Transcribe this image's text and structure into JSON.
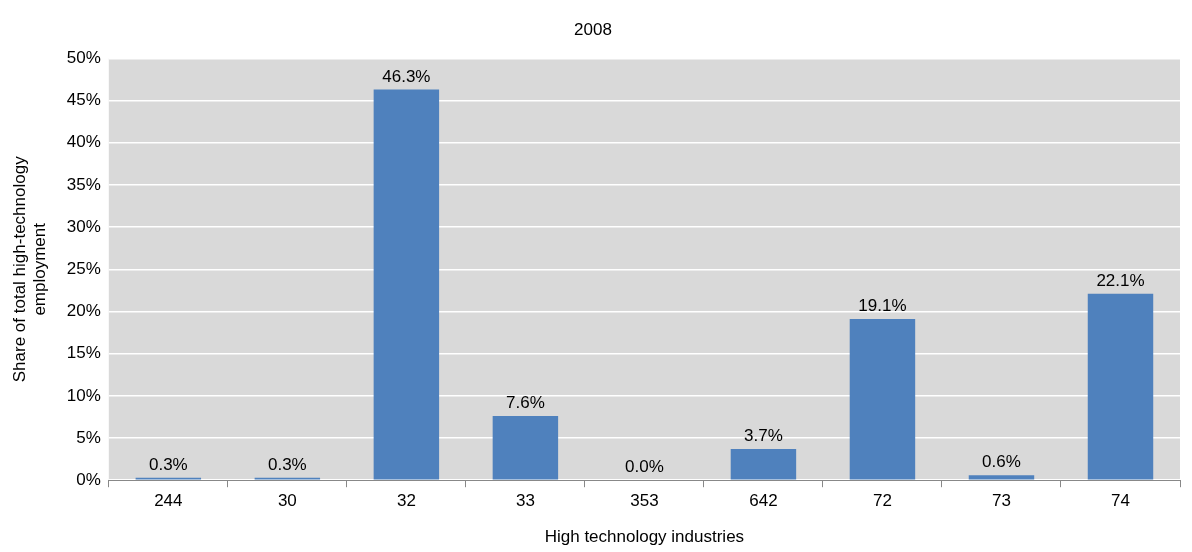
{
  "chart_data": {
    "type": "bar",
    "title": "2008",
    "xlabel": "High technology industries",
    "ylabel": "Share of total high-technology employment",
    "categories": [
      "244",
      "30",
      "32",
      "33",
      "353",
      "642",
      "72",
      "73",
      "74"
    ],
    "values": [
      0.3,
      0.3,
      46.3,
      7.6,
      0.0,
      3.7,
      19.1,
      0.6,
      22.1
    ],
    "value_labels": [
      "0.3%",
      "0.3%",
      "46.3%",
      "7.6%",
      "0.0%",
      "3.7%",
      "19.1%",
      "0.6%",
      "22.1%"
    ],
    "color": "#4f81bd",
    "ylim": [
      0,
      50
    ],
    "yticks": [
      {
        "value": 0,
        "label": "0%"
      },
      {
        "value": 5,
        "label": "5%"
      },
      {
        "value": 10,
        "label": "10%"
      },
      {
        "value": 15,
        "label": "15%"
      },
      {
        "value": 20,
        "label": "20%"
      },
      {
        "value": 25,
        "label": "25%"
      },
      {
        "value": 30,
        "label": "30%"
      },
      {
        "value": 35,
        "label": "35%"
      },
      {
        "value": 40,
        "label": "40%"
      },
      {
        "value": 45,
        "label": "45%"
      },
      {
        "value": 50,
        "label": "50%"
      }
    ],
    "grid": "y",
    "legend": false
  }
}
